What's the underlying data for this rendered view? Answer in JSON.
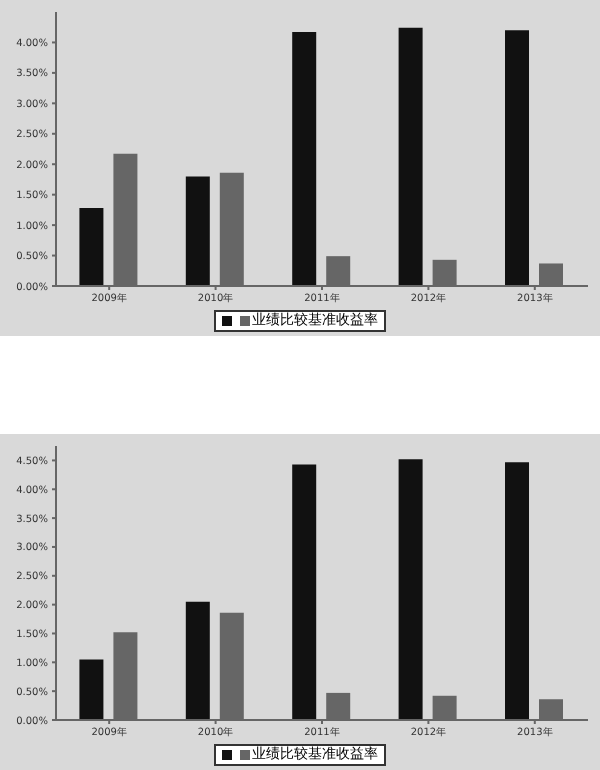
{
  "chart_data": [
    {
      "type": "bar",
      "categories": [
        "2009年",
        "2010年",
        "2011年",
        "2012年",
        "2013年"
      ],
      "series": [
        {
          "color": "#111111",
          "values": [
            1.28,
            1.8,
            4.17,
            4.24,
            4.2
          ]
        },
        {
          "name": "业绩比较基准收益率",
          "color": "#666666",
          "values": [
            2.17,
            1.86,
            0.49,
            0.43,
            0.37
          ]
        }
      ],
      "ylim": [
        0,
        4.5
      ],
      "yticks": [
        {
          "value": 0,
          "label": "0.00%"
        },
        {
          "value": 0.5,
          "label": "0.50%"
        },
        {
          "value": 1,
          "label": "1.00%"
        },
        {
          "value": 1.5,
          "label": "1.50%"
        },
        {
          "value": 2,
          "label": "2.00%"
        },
        {
          "value": 2.5,
          "label": "2.50%"
        },
        {
          "value": 3,
          "label": "3.00%"
        },
        {
          "value": 3.5,
          "label": "3.50%"
        },
        {
          "value": 4,
          "label": "4.00%"
        }
      ],
      "grid": false,
      "legend": "bottom"
    },
    {
      "type": "bar",
      "categories": [
        "2009年",
        "2010年",
        "2011年",
        "2012年",
        "2013年"
      ],
      "series": [
        {
          "color": "#111111",
          "values": [
            1.05,
            2.05,
            4.43,
            4.52,
            4.47
          ]
        },
        {
          "name": "业绩比较基准收益率",
          "color": "#666666",
          "values": [
            1.52,
            1.86,
            0.47,
            0.42,
            0.36
          ]
        }
      ],
      "ylim": [
        0,
        4.75
      ],
      "yticks": [
        {
          "value": 0,
          "label": "0.00%"
        },
        {
          "value": 0.5,
          "label": "0.50%"
        },
        {
          "value": 1,
          "label": "1.00%"
        },
        {
          "value": 1.5,
          "label": "1.50%"
        },
        {
          "value": 2,
          "label": "2.00%"
        },
        {
          "value": 2.5,
          "label": "2.50%"
        },
        {
          "value": 3,
          "label": "3.00%"
        },
        {
          "value": 3.5,
          "label": "3.50%"
        },
        {
          "value": 4,
          "label": "4.00%"
        },
        {
          "value": 4.5,
          "label": "4.50%"
        }
      ],
      "grid": false,
      "legend": "bottom"
    }
  ]
}
